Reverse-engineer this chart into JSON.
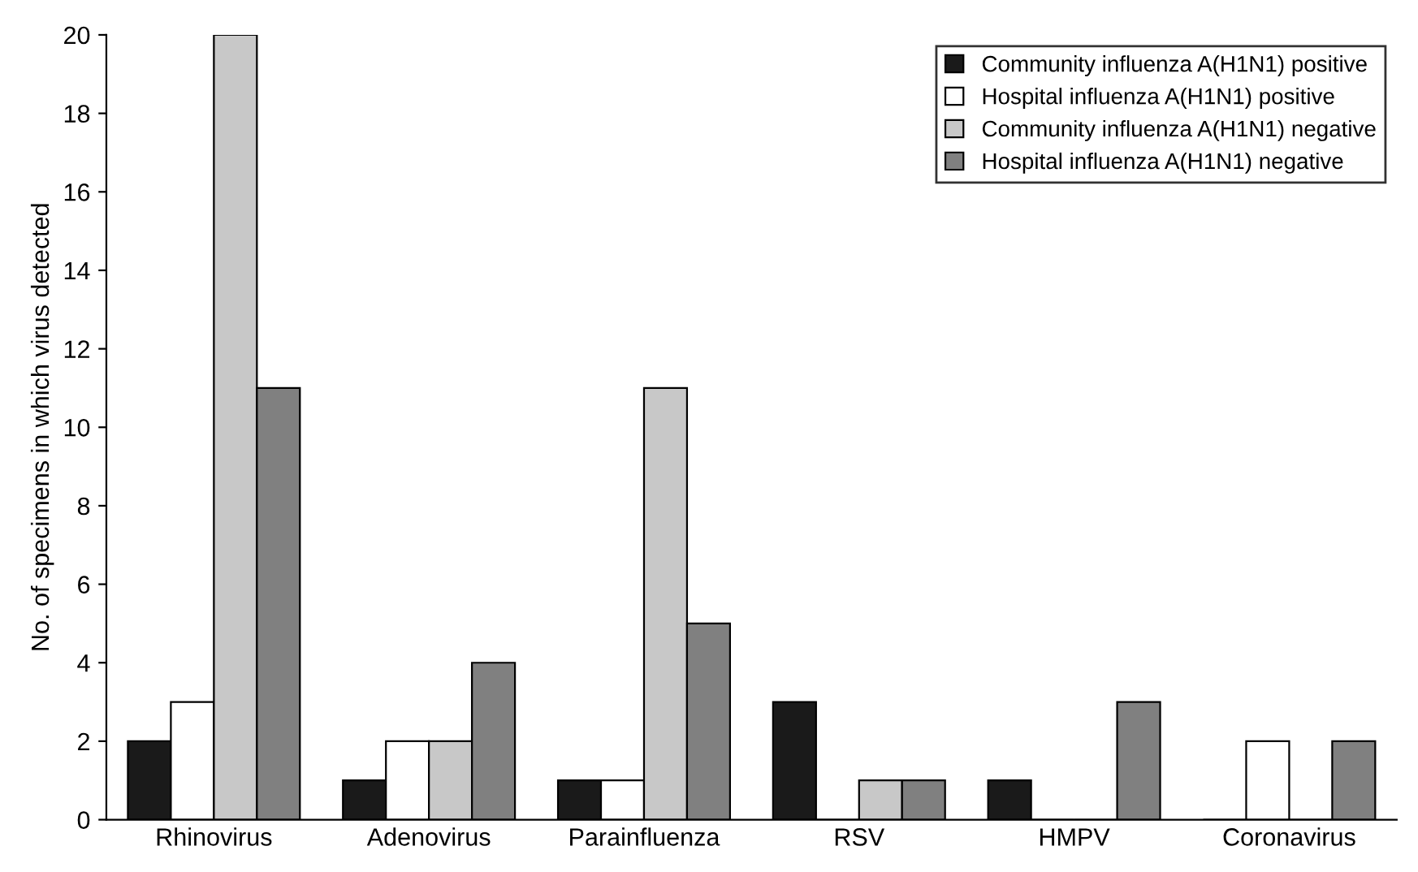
{
  "chart_data": {
    "type": "bar",
    "ylabel": "No. of specimens in which virus detected",
    "categories": [
      "Rhinovirus",
      "Adenovirus",
      "Parainfluenza",
      "RSV",
      "HMPV",
      "Coronavirus"
    ],
    "series": [
      {
        "name": "Community influenza A(H1N1) positive",
        "color": "#1a1a1a",
        "values": [
          2,
          1,
          1,
          3,
          1,
          0
        ]
      },
      {
        "name": "Hospital influenza A(H1N1) positive",
        "color": "#ffffff",
        "values": [
          3,
          2,
          1,
          0,
          0,
          2
        ]
      },
      {
        "name": "Community influenza A(H1N1) negative",
        "color": "#c8c8c8",
        "values": [
          20,
          2,
          11,
          1,
          0,
          0
        ]
      },
      {
        "name": "Hospital influenza A(H1N1) negative",
        "color": "#808080",
        "values": [
          11,
          4,
          5,
          1,
          3,
          2
        ]
      }
    ],
    "ylim": [
      0,
      20
    ],
    "yticks": [
      0,
      2,
      4,
      6,
      8,
      10,
      12,
      14,
      16,
      18,
      20
    ],
    "grid": false,
    "legend": "top right"
  }
}
